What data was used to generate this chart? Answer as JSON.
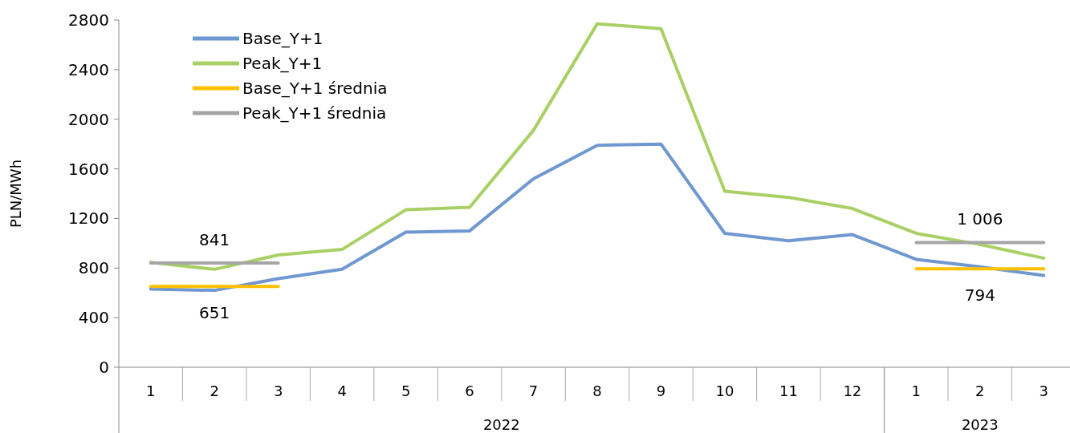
{
  "chart_data": {
    "type": "line",
    "ylabel": "PLN/MWh",
    "categories": [
      "1",
      "2",
      "3",
      "4",
      "5",
      "6",
      "7",
      "8",
      "9",
      "10",
      "11",
      "12",
      "1",
      "2",
      "3"
    ],
    "annotations": [
      "2022",
      "2023"
    ],
    "ylim": [
      0,
      2800
    ],
    "yticks": [
      0,
      400,
      800,
      1200,
      1600,
      2000,
      2400,
      2800
    ],
    "grid": false,
    "legend": "top left",
    "marker": "none",
    "line_style": "solid",
    "series": [
      {
        "name": "Base_Y+1",
        "color": "#6f97d0",
        "values": [
          630,
          620,
          715,
          790,
          1090,
          1100,
          1520,
          1790,
          1800,
          1080,
          1020,
          1070,
          870,
          810,
          740
        ]
      },
      {
        "name": "Peak_Y+1",
        "color": "#a9d065",
        "values": [
          845,
          790,
          905,
          950,
          1270,
          1290,
          1910,
          2770,
          2730,
          1420,
          1370,
          1280,
          1080,
          990,
          880
        ]
      },
      {
        "name": "Base_Y+1 średnia",
        "color": "#ffc000",
        "values": [
          651,
          651,
          651,
          null,
          null,
          null,
          null,
          null,
          null,
          null,
          null,
          null,
          794,
          794,
          794
        ],
        "value_labels": [
          null,
          "651",
          null,
          null,
          null,
          null,
          null,
          null,
          null,
          null,
          null,
          null,
          null,
          "794",
          null
        ]
      },
      {
        "name": "Peak_Y+1 średnia",
        "color": "#a5a5a5",
        "values": [
          841,
          841,
          841,
          null,
          null,
          null,
          null,
          null,
          null,
          null,
          null,
          null,
          1006,
          1006,
          1006
        ],
        "value_labels": [
          null,
          "841",
          null,
          null,
          null,
          null,
          null,
          null,
          null,
          null,
          null,
          null,
          null,
          "1 006",
          null
        ]
      }
    ]
  }
}
